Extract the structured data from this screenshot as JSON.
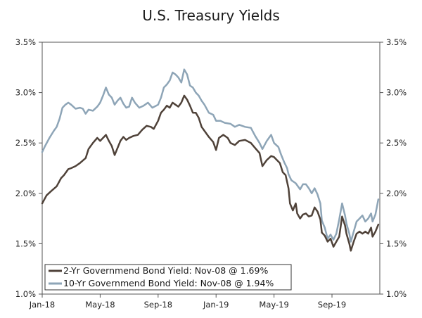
{
  "chart_data": {
    "type": "line",
    "title": "U.S. Treasury Yields",
    "xlabel": "",
    "ylabel": "",
    "x_tick_labels": [
      "Jan-18",
      "May-18",
      "Sep-18",
      "Jan-19",
      "May-19",
      "Sep-19"
    ],
    "y_tick_labels": [
      "1.0%",
      "1.5%",
      "2.0%",
      "2.5%",
      "3.0%",
      "3.5%"
    ],
    "y_ticks": [
      1.0,
      1.5,
      2.0,
      2.5,
      3.0,
      3.5
    ],
    "ylim": [
      1.0,
      3.5
    ],
    "xlim_months": [
      0,
      23.3
    ],
    "x_tick_months": [
      0,
      4,
      8,
      12,
      16,
      20
    ],
    "grid": false,
    "legend_position": "bottom-left",
    "series": [
      {
        "name": "2-Yr Governmend Bond Yield: Nov-08 @ 1.69%",
        "color": "#4f4239",
        "points": [
          [
            0.0,
            1.9
          ],
          [
            0.3,
            1.98
          ],
          [
            0.6,
            2.02
          ],
          [
            1.0,
            2.07
          ],
          [
            1.3,
            2.15
          ],
          [
            1.5,
            2.18
          ],
          [
            1.8,
            2.24
          ],
          [
            2.0,
            2.25
          ],
          [
            2.3,
            2.27
          ],
          [
            2.6,
            2.3
          ],
          [
            3.0,
            2.35
          ],
          [
            3.2,
            2.44
          ],
          [
            3.5,
            2.5
          ],
          [
            3.8,
            2.55
          ],
          [
            4.0,
            2.52
          ],
          [
            4.2,
            2.55
          ],
          [
            4.4,
            2.58
          ],
          [
            4.6,
            2.52
          ],
          [
            4.8,
            2.47
          ],
          [
            5.0,
            2.38
          ],
          [
            5.2,
            2.45
          ],
          [
            5.4,
            2.52
          ],
          [
            5.6,
            2.56
          ],
          [
            5.8,
            2.53
          ],
          [
            6.0,
            2.55
          ],
          [
            6.3,
            2.57
          ],
          [
            6.6,
            2.58
          ],
          [
            6.9,
            2.63
          ],
          [
            7.2,
            2.67
          ],
          [
            7.5,
            2.66
          ],
          [
            7.7,
            2.64
          ],
          [
            8.0,
            2.72
          ],
          [
            8.2,
            2.8
          ],
          [
            8.4,
            2.83
          ],
          [
            8.6,
            2.87
          ],
          [
            8.8,
            2.85
          ],
          [
            9.0,
            2.9
          ],
          [
            9.2,
            2.88
          ],
          [
            9.4,
            2.86
          ],
          [
            9.6,
            2.9
          ],
          [
            9.8,
            2.97
          ],
          [
            10.0,
            2.93
          ],
          [
            10.2,
            2.87
          ],
          [
            10.4,
            2.8
          ],
          [
            10.6,
            2.8
          ],
          [
            10.8,
            2.75
          ],
          [
            11.0,
            2.66
          ],
          [
            11.2,
            2.62
          ],
          [
            11.5,
            2.56
          ],
          [
            11.8,
            2.51
          ],
          [
            12.0,
            2.43
          ],
          [
            12.2,
            2.55
          ],
          [
            12.5,
            2.58
          ],
          [
            12.8,
            2.55
          ],
          [
            13.0,
            2.5
          ],
          [
            13.3,
            2.48
          ],
          [
            13.6,
            2.52
          ],
          [
            14.0,
            2.53
          ],
          [
            14.4,
            2.5
          ],
          [
            14.7,
            2.45
          ],
          [
            15.0,
            2.4
          ],
          [
            15.2,
            2.27
          ],
          [
            15.5,
            2.33
          ],
          [
            15.8,
            2.37
          ],
          [
            16.0,
            2.36
          ],
          [
            16.2,
            2.33
          ],
          [
            16.4,
            2.3
          ],
          [
            16.6,
            2.21
          ],
          [
            16.8,
            2.18
          ],
          [
            17.0,
            2.05
          ],
          [
            17.1,
            1.9
          ],
          [
            17.3,
            1.83
          ],
          [
            17.5,
            1.9
          ],
          [
            17.6,
            1.8
          ],
          [
            17.8,
            1.75
          ],
          [
            18.0,
            1.79
          ],
          [
            18.2,
            1.8
          ],
          [
            18.4,
            1.77
          ],
          [
            18.6,
            1.78
          ],
          [
            18.8,
            1.86
          ],
          [
            19.0,
            1.82
          ],
          [
            19.2,
            1.74
          ],
          [
            19.3,
            1.61
          ],
          [
            19.5,
            1.58
          ],
          [
            19.7,
            1.52
          ],
          [
            19.9,
            1.55
          ],
          [
            20.1,
            1.47
          ],
          [
            20.3,
            1.52
          ],
          [
            20.5,
            1.57
          ],
          [
            20.7,
            1.77
          ],
          [
            20.9,
            1.68
          ],
          [
            21.0,
            1.6
          ],
          [
            21.2,
            1.5
          ],
          [
            21.3,
            1.43
          ],
          [
            21.5,
            1.52
          ],
          [
            21.7,
            1.6
          ],
          [
            21.9,
            1.62
          ],
          [
            22.1,
            1.6
          ],
          [
            22.3,
            1.62
          ],
          [
            22.5,
            1.6
          ],
          [
            22.7,
            1.66
          ],
          [
            22.8,
            1.57
          ],
          [
            23.0,
            1.62
          ],
          [
            23.2,
            1.69
          ]
        ]
      },
      {
        "name": "10-Yr Governmend Bond Yield: Nov-08 @ 1.94%",
        "color": "#8ea5b7",
        "points": [
          [
            0.0,
            2.41
          ],
          [
            0.2,
            2.47
          ],
          [
            0.5,
            2.55
          ],
          [
            0.8,
            2.62
          ],
          [
            1.0,
            2.66
          ],
          [
            1.2,
            2.74
          ],
          [
            1.4,
            2.85
          ],
          [
            1.6,
            2.88
          ],
          [
            1.8,
            2.9
          ],
          [
            2.0,
            2.88
          ],
          [
            2.3,
            2.84
          ],
          [
            2.6,
            2.85
          ],
          [
            2.8,
            2.84
          ],
          [
            3.0,
            2.79
          ],
          [
            3.2,
            2.83
          ],
          [
            3.5,
            2.82
          ],
          [
            3.8,
            2.86
          ],
          [
            4.0,
            2.9
          ],
          [
            4.2,
            2.97
          ],
          [
            4.4,
            3.05
          ],
          [
            4.6,
            2.98
          ],
          [
            4.8,
            2.95
          ],
          [
            5.0,
            2.88
          ],
          [
            5.2,
            2.92
          ],
          [
            5.4,
            2.95
          ],
          [
            5.6,
            2.89
          ],
          [
            5.8,
            2.85
          ],
          [
            6.0,
            2.86
          ],
          [
            6.2,
            2.95
          ],
          [
            6.4,
            2.9
          ],
          [
            6.7,
            2.85
          ],
          [
            7.0,
            2.87
          ],
          [
            7.3,
            2.9
          ],
          [
            7.6,
            2.85
          ],
          [
            8.0,
            2.88
          ],
          [
            8.2,
            2.95
          ],
          [
            8.4,
            3.05
          ],
          [
            8.6,
            3.08
          ],
          [
            8.8,
            3.12
          ],
          [
            9.0,
            3.2
          ],
          [
            9.2,
            3.18
          ],
          [
            9.4,
            3.15
          ],
          [
            9.6,
            3.1
          ],
          [
            9.8,
            3.23
          ],
          [
            10.0,
            3.18
          ],
          [
            10.2,
            3.07
          ],
          [
            10.4,
            3.05
          ],
          [
            10.6,
            3.0
          ],
          [
            10.8,
            2.97
          ],
          [
            11.0,
            2.92
          ],
          [
            11.2,
            2.88
          ],
          [
            11.5,
            2.8
          ],
          [
            11.8,
            2.78
          ],
          [
            12.0,
            2.72
          ],
          [
            12.3,
            2.72
          ],
          [
            12.6,
            2.7
          ],
          [
            13.0,
            2.69
          ],
          [
            13.3,
            2.66
          ],
          [
            13.6,
            2.68
          ],
          [
            14.0,
            2.66
          ],
          [
            14.4,
            2.65
          ],
          [
            14.7,
            2.57
          ],
          [
            15.0,
            2.5
          ],
          [
            15.2,
            2.44
          ],
          [
            15.5,
            2.52
          ],
          [
            15.8,
            2.58
          ],
          [
            16.0,
            2.5
          ],
          [
            16.3,
            2.46
          ],
          [
            16.5,
            2.38
          ],
          [
            16.7,
            2.31
          ],
          [
            16.9,
            2.25
          ],
          [
            17.0,
            2.19
          ],
          [
            17.2,
            2.13
          ],
          [
            17.5,
            2.1
          ],
          [
            17.8,
            2.04
          ],
          [
            18.0,
            2.09
          ],
          [
            18.2,
            2.09
          ],
          [
            18.4,
            2.05
          ],
          [
            18.6,
            2.0
          ],
          [
            18.8,
            2.05
          ],
          [
            19.0,
            1.99
          ],
          [
            19.2,
            1.9
          ],
          [
            19.3,
            1.73
          ],
          [
            19.5,
            1.66
          ],
          [
            19.7,
            1.55
          ],
          [
            19.9,
            1.59
          ],
          [
            20.1,
            1.54
          ],
          [
            20.3,
            1.6
          ],
          [
            20.5,
            1.74
          ],
          [
            20.7,
            1.9
          ],
          [
            20.9,
            1.78
          ],
          [
            21.0,
            1.7
          ],
          [
            21.2,
            1.6
          ],
          [
            21.3,
            1.52
          ],
          [
            21.5,
            1.62
          ],
          [
            21.7,
            1.72
          ],
          [
            21.9,
            1.75
          ],
          [
            22.1,
            1.78
          ],
          [
            22.3,
            1.72
          ],
          [
            22.5,
            1.75
          ],
          [
            22.7,
            1.8
          ],
          [
            22.8,
            1.72
          ],
          [
            23.0,
            1.79
          ],
          [
            23.2,
            1.94
          ]
        ]
      }
    ]
  }
}
